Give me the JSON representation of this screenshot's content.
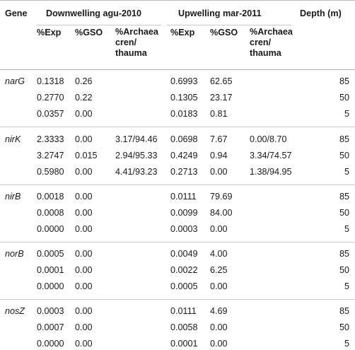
{
  "headers": {
    "gene": "Gene",
    "downwelling": "Downwelling agu-2010",
    "upwelling": "Upwelling mar-2011",
    "depth": "Depth (m)",
    "exp": "%Exp",
    "gso": "%GSO",
    "archaea": "%Archaea cren/ thauma"
  },
  "groups": [
    {
      "gene": "narG",
      "rows": [
        {
          "d_exp": "0.1318",
          "d_gso": "0.26",
          "d_arch": "",
          "u_exp": "0.6993",
          "u_gso": "62.65",
          "u_arch": "",
          "depth": "85"
        },
        {
          "d_exp": "0.2770",
          "d_gso": "0.22",
          "d_arch": "",
          "u_exp": "0.1305",
          "u_gso": "23.17",
          "u_arch": "",
          "depth": "50"
        },
        {
          "d_exp": "0.0357",
          "d_gso": "0.00",
          "d_arch": "",
          "u_exp": "0.0183",
          "u_gso": "0.81",
          "u_arch": "",
          "depth": "5"
        }
      ]
    },
    {
      "gene": "nirK",
      "rows": [
        {
          "d_exp": "2.3333",
          "d_gso": "0.00",
          "d_arch": "3.17/94.46",
          "u_exp": "0.0698",
          "u_gso": "7.67",
          "u_arch": "0.00/8.70",
          "depth": "85"
        },
        {
          "d_exp": "3.2747",
          "d_gso": "0.015",
          "d_arch": "2.94/95.33",
          "u_exp": "0.4249",
          "u_gso": "0.94",
          "u_arch": "3.34/74.57",
          "depth": "50"
        },
        {
          "d_exp": "0.5980",
          "d_gso": "0.00",
          "d_arch": "4.41/93.23",
          "u_exp": "0.2713",
          "u_gso": "0.00",
          "u_arch": "1.38/94.95",
          "depth": "5"
        }
      ]
    },
    {
      "gene": "nirB",
      "rows": [
        {
          "d_exp": "0.0018",
          "d_gso": "0.00",
          "d_arch": "",
          "u_exp": "0.0111",
          "u_gso": "79.69",
          "u_arch": "",
          "depth": "85"
        },
        {
          "d_exp": "0.0008",
          "d_gso": "0.00",
          "d_arch": "",
          "u_exp": "0.0099",
          "u_gso": "84.00",
          "u_arch": "",
          "depth": "50"
        },
        {
          "d_exp": "0.0000",
          "d_gso": "0.00",
          "d_arch": "",
          "u_exp": "0.0003",
          "u_gso": "0.00",
          "u_arch": "",
          "depth": "5"
        }
      ]
    },
    {
      "gene": "norB",
      "rows": [
        {
          "d_exp": "0.0005",
          "d_gso": "0.00",
          "d_arch": "",
          "u_exp": "0.0049",
          "u_gso": "4.00",
          "u_arch": "",
          "depth": "85"
        },
        {
          "d_exp": "0.0001",
          "d_gso": "0.00",
          "d_arch": "",
          "u_exp": "0.0022",
          "u_gso": "6.25",
          "u_arch": "",
          "depth": "50"
        },
        {
          "d_exp": "0.0000",
          "d_gso": "0.00",
          "d_arch": "",
          "u_exp": "0.0005",
          "u_gso": "0.00",
          "u_arch": "",
          "depth": "5"
        }
      ]
    },
    {
      "gene": "nosZ",
      "rows": [
        {
          "d_exp": "0.0003",
          "d_gso": "0.00",
          "d_arch": "",
          "u_exp": "0.0111",
          "u_gso": "4.69",
          "u_arch": "",
          "depth": "85"
        },
        {
          "d_exp": "0.0007",
          "d_gso": "0.00",
          "d_arch": "",
          "u_exp": "0.0058",
          "u_gso": "0.00",
          "u_arch": "",
          "depth": "50"
        },
        {
          "d_exp": "0.0000",
          "d_gso": "0.00",
          "d_arch": "",
          "u_exp": "0.0001",
          "u_gso": "0.00",
          "u_arch": "",
          "depth": "5"
        }
      ]
    }
  ]
}
